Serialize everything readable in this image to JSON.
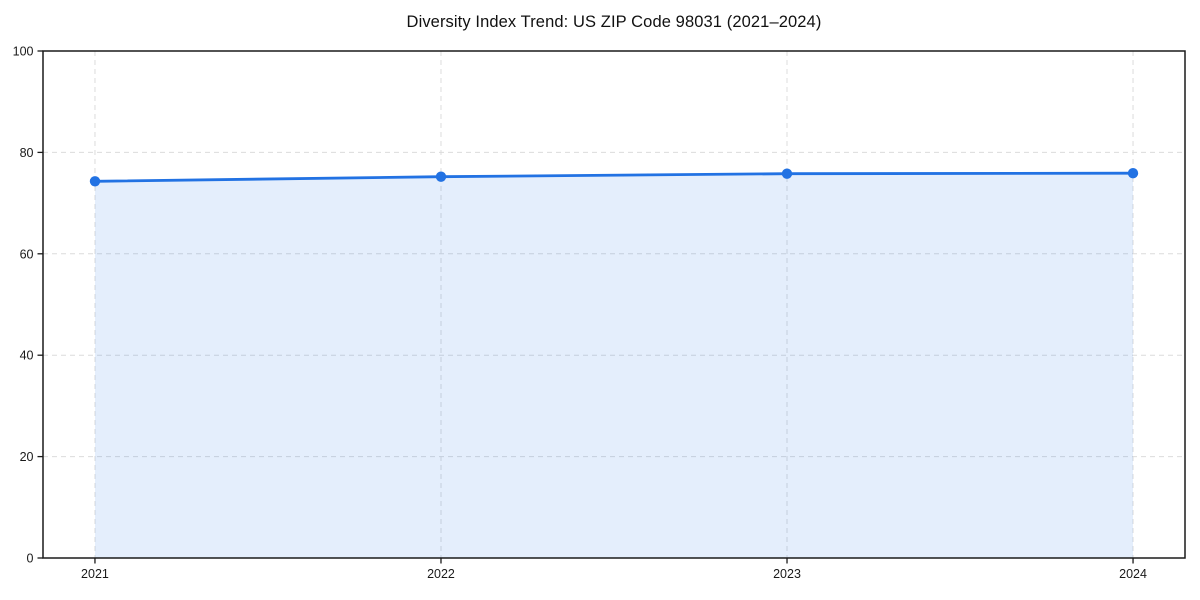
{
  "chart_data": {
    "type": "line",
    "title": "Diversity Index Trend: US ZIP Code 98031 (2021–2024)",
    "series_name": "Diversity Index",
    "x": [
      "2021",
      "2022",
      "2023",
      "2024"
    ],
    "values": [
      74.3,
      75.2,
      75.8,
      75.9
    ],
    "xlabel": "",
    "ylabel": "",
    "ylim": [
      0,
      100
    ],
    "yticks": [
      0,
      20,
      40,
      60,
      80,
      100
    ],
    "grid": true,
    "legend_position": "none",
    "area_fill_to_zero": true,
    "colors": {
      "line": "#2272e3",
      "marker": "#2272e3",
      "area": "rgba(34,114,227,0.12)",
      "grid": "#dcdcdc",
      "axis": "#1a1a1a",
      "text": "#1a1a1a",
      "background": "#ffffff"
    }
  }
}
